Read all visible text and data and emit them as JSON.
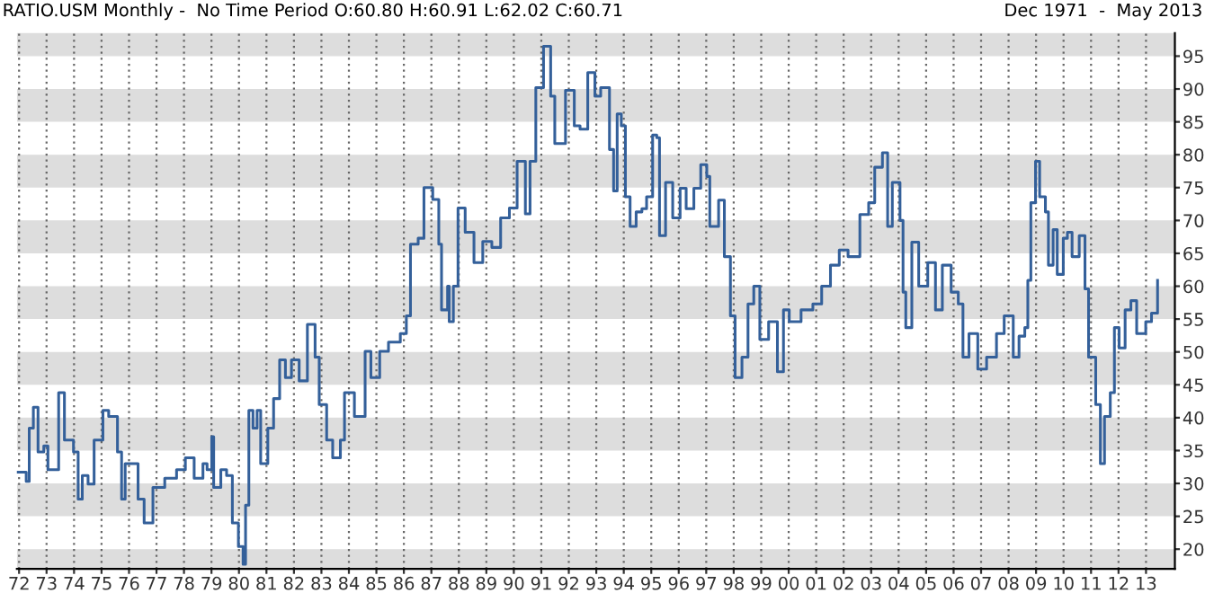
{
  "chart_data": {
    "type": "step",
    "title": "RATIO.USM Monthly -  No Time Period O:60.80 H:60.91 L:62.02 C:60.71",
    "annotations": [
      "Dec 1971  -  May 2013"
    ],
    "x": [
      1971.94,
      1972.26,
      1972.37,
      1972.52,
      1972.69,
      1972.9,
      1973.05,
      1973.44,
      1973.65,
      1973.98,
      1974.15,
      1974.3,
      1974.51,
      1974.73,
      1975.05,
      1975.26,
      1975.58,
      1975.73,
      1975.86,
      1976.33,
      1976.55,
      1976.87,
      1977.3,
      1977.73,
      1978.05,
      1978.37,
      1978.69,
      1978.84,
      1979.01,
      1979.08,
      1979.34,
      1979.55,
      1979.76,
      1979.98,
      1980.15,
      1980.24,
      1980.36,
      1980.51,
      1980.66,
      1980.79,
      1981.05,
      1981.26,
      1981.48,
      1981.69,
      1981.91,
      1982.19,
      1982.49,
      1982.77,
      1982.92,
      1983.19,
      1983.41,
      1983.69,
      1983.84,
      1984.2,
      1984.59,
      1984.8,
      1985.12,
      1985.44,
      1985.87,
      1986.09,
      1986.24,
      1986.52,
      1986.73,
      1987.05,
      1987.27,
      1987.37,
      1987.59,
      1987.65,
      1987.8,
      1987.97,
      1988.23,
      1988.55,
      1988.87,
      1989.2,
      1989.52,
      1989.84,
      1990.12,
      1990.42,
      1990.59,
      1990.8,
      1991.08,
      1991.34,
      1991.49,
      1991.88,
      1992.2,
      1992.41,
      1992.69,
      1992.95,
      1993.16,
      1993.48,
      1993.63,
      1993.76,
      1993.91,
      1994.06,
      1994.23,
      1994.45,
      1994.66,
      1994.83,
      1995.05,
      1995.2,
      1995.3,
      1995.52,
      1995.78,
      1996.05,
      1996.27,
      1996.55,
      1996.8,
      1997.02,
      1997.13,
      1997.45,
      1997.66,
      1997.88,
      1998.05,
      1998.3,
      1998.52,
      1998.73,
      1998.95,
      1999.27,
      1999.59,
      1999.81,
      2000.02,
      2000.45,
      2000.88,
      2001.2,
      2001.52,
      2001.84,
      2002.16,
      2002.59,
      2002.91,
      2003.13,
      2003.41,
      2003.6,
      2003.77,
      2004.05,
      2004.16,
      2004.26,
      2004.48,
      2004.73,
      2005.06,
      2005.34,
      2005.59,
      2005.91,
      2006.17,
      2006.34,
      2006.56,
      2006.88,
      2007.2,
      2007.56,
      2007.84,
      2008.17,
      2008.38,
      2008.59,
      2008.7,
      2008.81,
      2008.98,
      2009.13,
      2009.34,
      2009.45,
      2009.62,
      2009.77,
      2009.99,
      2010.14,
      2010.31,
      2010.57,
      2010.78,
      2010.91,
      2011.17,
      2011.34,
      2011.49,
      2011.7,
      2011.85,
      2012.02,
      2012.24,
      2012.45,
      2012.66,
      2012.99,
      2013.2,
      2013.42
    ],
    "series": [
      {
        "color": "#34609a",
        "values": [
          31.7,
          30.3,
          38.4,
          41.6,
          34.8,
          35.7,
          32.1,
          43.8,
          36.6,
          34.8,
          27.6,
          31.2,
          29.9,
          36.6,
          41.1,
          40.2,
          34.8,
          27.6,
          33.0,
          27.6,
          24.0,
          29.4,
          30.8,
          32.1,
          33.9,
          30.8,
          33.0,
          32.1,
          37.1,
          29.4,
          32.1,
          31.2,
          24.0,
          20.4,
          17.7,
          26.7,
          41.1,
          38.4,
          41.1,
          33.0,
          38.4,
          42.9,
          48.8,
          46.1,
          48.8,
          45.6,
          54.2,
          49.2,
          42.0,
          36.6,
          33.9,
          36.6,
          43.8,
          40.2,
          50.1,
          46.1,
          50.1,
          51.5,
          52.8,
          55.5,
          66.4,
          67.3,
          75.0,
          73.2,
          66.4,
          56.4,
          60.0,
          54.6,
          60.0,
          71.9,
          68.2,
          63.6,
          66.8,
          65.9,
          70.4,
          71.9,
          79.0,
          71.0,
          79.0,
          90.2,
          96.5,
          88.9,
          81.7,
          89.8,
          84.4,
          83.9,
          92.5,
          88.9,
          90.2,
          80.8,
          74.5,
          86.2,
          84.4,
          73.6,
          69.1,
          71.3,
          71.8,
          73.6,
          83.0,
          82.6,
          67.7,
          75.8,
          70.4,
          74.9,
          71.8,
          74.9,
          78.5,
          76.7,
          69.1,
          73.1,
          64.5,
          55.5,
          46.1,
          49.2,
          57.3,
          60.0,
          51.9,
          54.6,
          47.0,
          56.4,
          54.6,
          56.4,
          57.3,
          60.0,
          63.2,
          65.5,
          64.5,
          70.9,
          72.7,
          78.1,
          80.3,
          69.1,
          75.8,
          70.0,
          59.1,
          53.7,
          66.7,
          60.0,
          63.6,
          56.4,
          63.2,
          59.1,
          57.3,
          49.2,
          52.8,
          47.4,
          49.2,
          52.8,
          55.5,
          49.2,
          52.4,
          53.7,
          60.9,
          72.7,
          79.0,
          73.6,
          71.3,
          63.2,
          68.6,
          61.8,
          67.3,
          68.2,
          64.5,
          67.7,
          59.6,
          49.2,
          42.0,
          33.0,
          40.2,
          43.8,
          53.7,
          50.6,
          56.4,
          57.8,
          52.8,
          54.6,
          55.9,
          60.9
        ]
      }
    ],
    "xlim": [
      1971.92,
      2014.05
    ],
    "xticks": [
      {
        "value": 1972,
        "label": "72"
      },
      {
        "value": 1973,
        "label": "73"
      },
      {
        "value": 1974,
        "label": "74"
      },
      {
        "value": 1975,
        "label": "75"
      },
      {
        "value": 1976,
        "label": "76"
      },
      {
        "value": 1977,
        "label": "77"
      },
      {
        "value": 1978,
        "label": "78"
      },
      {
        "value": 1979,
        "label": "79"
      },
      {
        "value": 1980,
        "label": "80"
      },
      {
        "value": 1981,
        "label": "81"
      },
      {
        "value": 1982,
        "label": "82"
      },
      {
        "value": 1983,
        "label": "83"
      },
      {
        "value": 1984,
        "label": "84"
      },
      {
        "value": 1985,
        "label": "85"
      },
      {
        "value": 1986,
        "label": "86"
      },
      {
        "value": 1987,
        "label": "87"
      },
      {
        "value": 1988,
        "label": "88"
      },
      {
        "value": 1989,
        "label": "89"
      },
      {
        "value": 1990,
        "label": "90"
      },
      {
        "value": 1991,
        "label": "91"
      },
      {
        "value": 1992,
        "label": "92"
      },
      {
        "value": 1993,
        "label": "93"
      },
      {
        "value": 1994,
        "label": "94"
      },
      {
        "value": 1995,
        "label": "95"
      },
      {
        "value": 1996,
        "label": "96"
      },
      {
        "value": 1997,
        "label": "97"
      },
      {
        "value": 1998,
        "label": "98"
      },
      {
        "value": 1999,
        "label": "99"
      },
      {
        "value": 2000,
        "label": "00"
      },
      {
        "value": 2001,
        "label": "01"
      },
      {
        "value": 2002,
        "label": "02"
      },
      {
        "value": 2003,
        "label": "03"
      },
      {
        "value": 2004,
        "label": "04"
      },
      {
        "value": 2005,
        "label": "05"
      },
      {
        "value": 2006,
        "label": "06"
      },
      {
        "value": 2007,
        "label": "07"
      },
      {
        "value": 2008,
        "label": "08"
      },
      {
        "value": 2009,
        "label": "09"
      },
      {
        "value": 2010,
        "label": "10"
      },
      {
        "value": 2011,
        "label": "11"
      },
      {
        "value": 2012,
        "label": "12"
      },
      {
        "value": 2013,
        "label": "13"
      }
    ],
    "ylim": [
      17,
      98.5
    ],
    "yticks": [
      20,
      25,
      30,
      35,
      40,
      45,
      50,
      55,
      60,
      65,
      70,
      75,
      80,
      85,
      90,
      95
    ],
    "bands": [
      {
        "axis": "y",
        "from": 15,
        "to": 20,
        "color": "#dddddd"
      },
      {
        "axis": "y",
        "from": 25,
        "to": 30,
        "color": "#dddddd"
      },
      {
        "axis": "y",
        "from": 35,
        "to": 40,
        "color": "#dddddd"
      },
      {
        "axis": "y",
        "from": 45,
        "to": 50,
        "color": "#dddddd"
      },
      {
        "axis": "y",
        "from": 55,
        "to": 60,
        "color": "#dddddd"
      },
      {
        "axis": "y",
        "from": 65,
        "to": 70,
        "color": "#dddddd"
      },
      {
        "axis": "y",
        "from": 75,
        "to": 80,
        "color": "#dddddd"
      },
      {
        "axis": "y",
        "from": 85,
        "to": 90,
        "color": "#dddddd"
      },
      {
        "axis": "y",
        "from": 95,
        "to": 100,
        "color": "#dddddd"
      }
    ],
    "grid": "x",
    "line_style": "solid",
    "marker": "none"
  }
}
